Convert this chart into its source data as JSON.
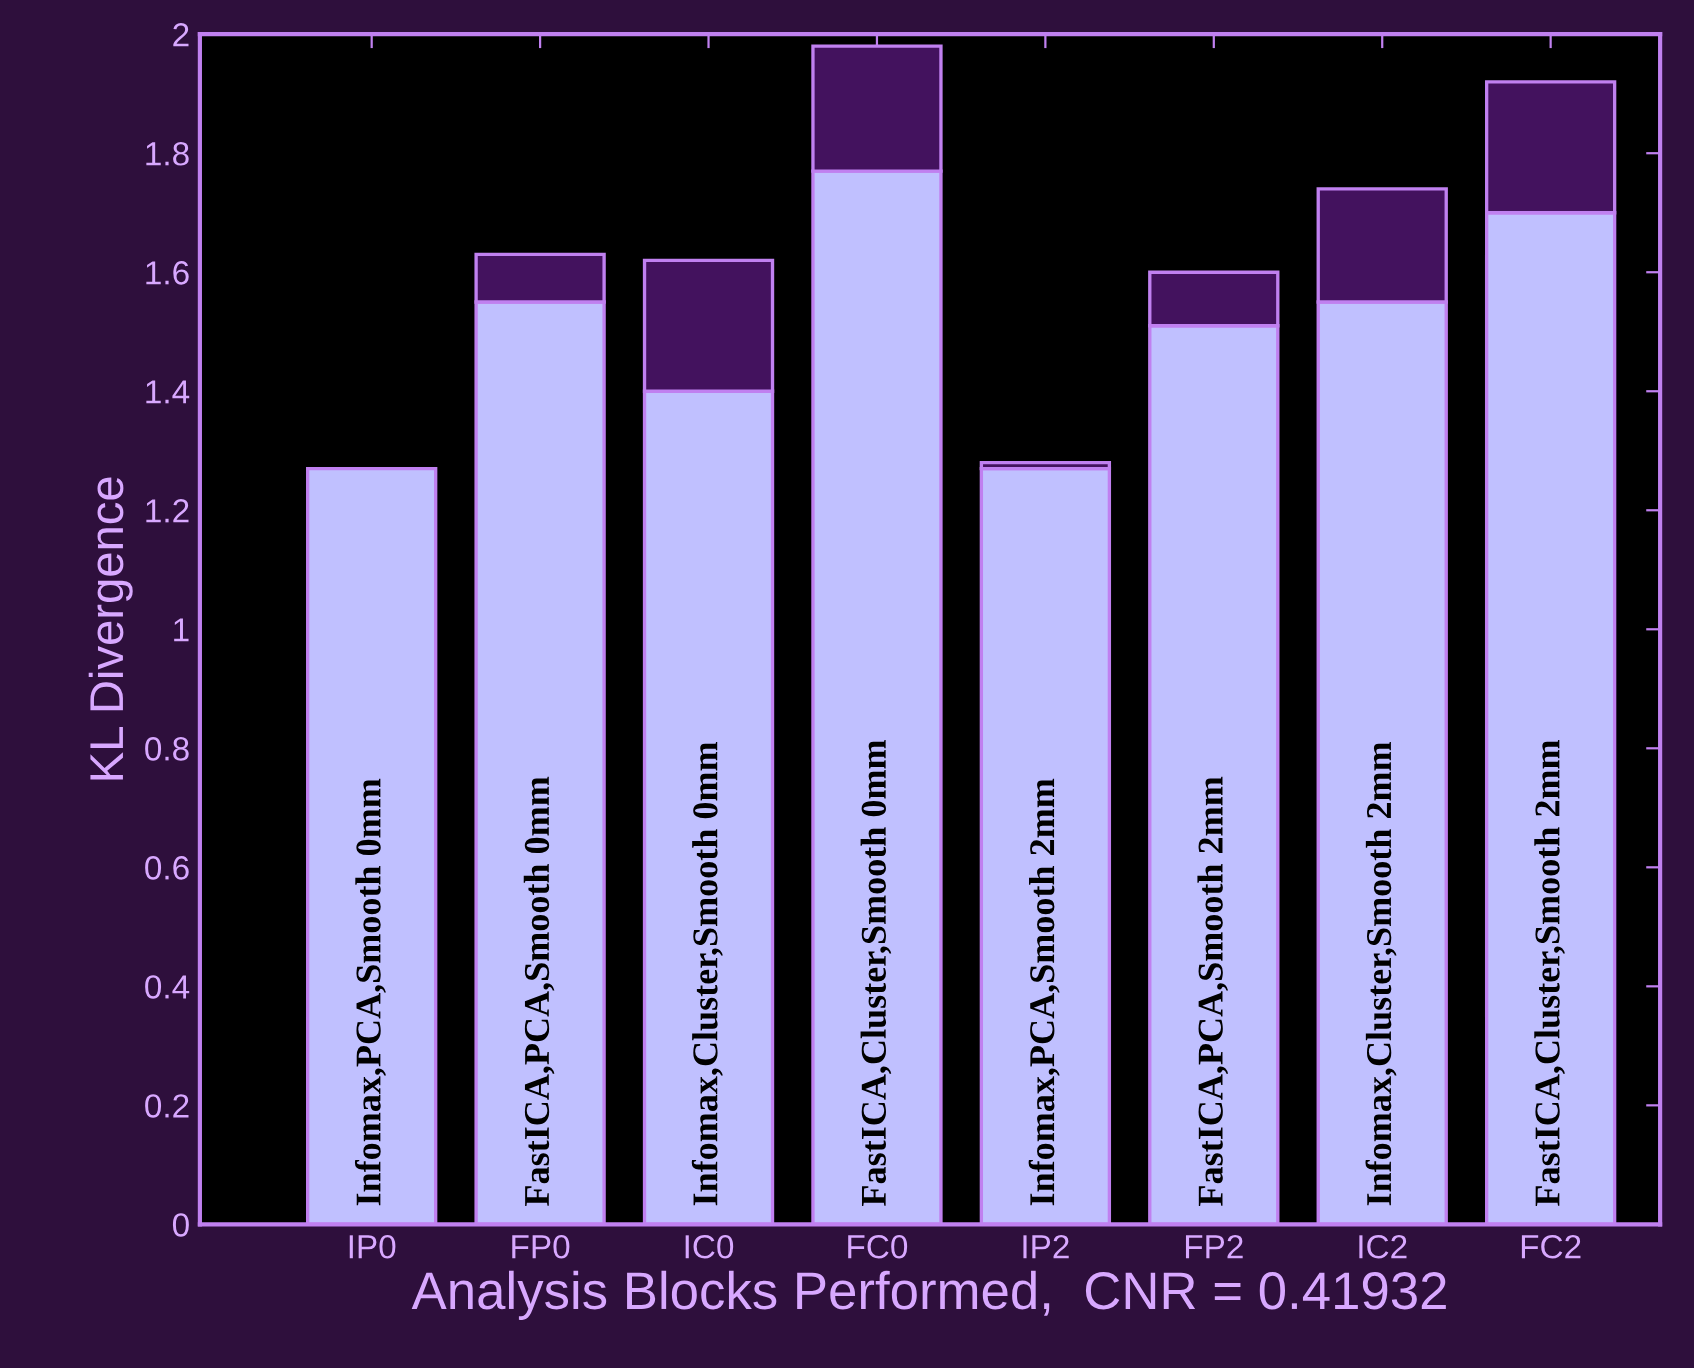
{
  "chart_data": {
    "type": "bar",
    "stacked": true,
    "xlabel": "Analysis Blocks Performed,  CNR = 0.41932",
    "ylabel": "KL Divergence",
    "categories": [
      "IP0",
      "FP0",
      "IC0",
      "FC0",
      "IP2",
      "FP2",
      "IC2",
      "FC2"
    ],
    "series": [
      {
        "color": "#c0c0ff",
        "values": [
          1.27,
          1.55,
          1.4,
          1.77,
          1.27,
          1.51,
          1.55,
          1.7
        ]
      },
      {
        "color": "#43125e",
        "values": [
          null,
          0.08,
          0.22,
          0.21,
          0.01,
          0.09,
          0.19,
          0.22
        ]
      }
    ],
    "ylim": [
      0,
      2
    ],
    "yticks": [
      0,
      0.2,
      0.4,
      0.6,
      0.8,
      1,
      1.2,
      1.4,
      1.6,
      1.8,
      2
    ],
    "grid": false,
    "annotations": [
      "Infomax,PCA,Smooth 0mm",
      "FastICA,PCA,Smooth 0mm",
      "Infomax,Cluster,Smooth 0mm",
      "FastICA,Cluster,Smooth 0mm",
      "Infomax,PCA,Smooth 2mm",
      "FastICA,PCA,Smooth 2mm",
      "Infomax,Cluster,Smooth 2mm",
      "FastICA,Cluster,Smooth 2mm"
    ]
  }
}
